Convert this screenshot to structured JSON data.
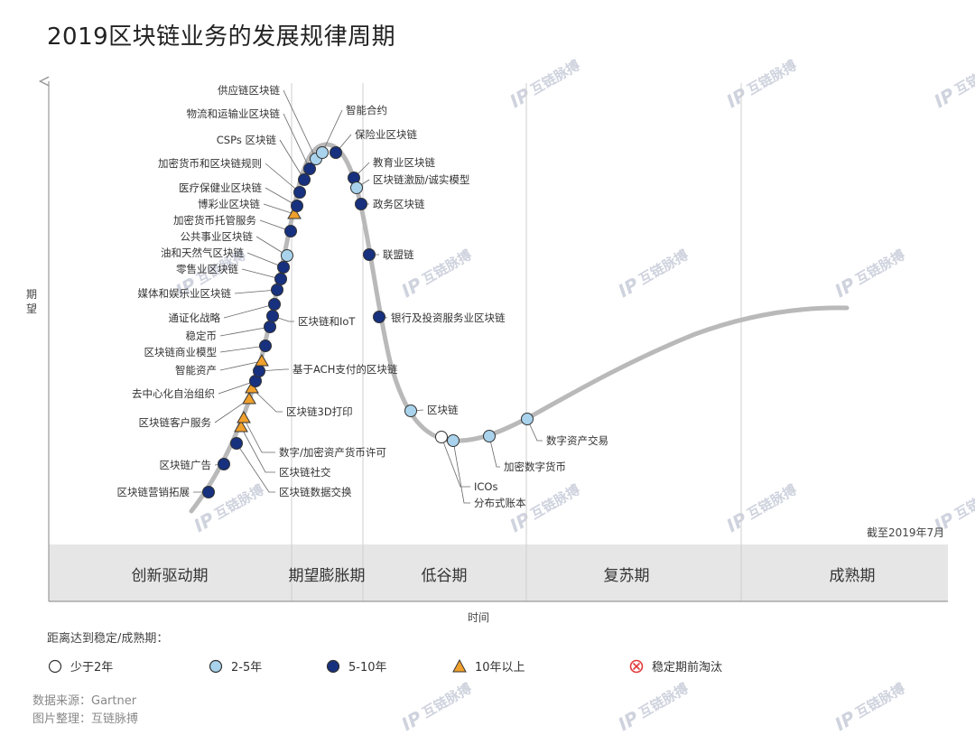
{
  "title": "2019区块链业务的发展规律周期",
  "chart_data": {
    "type": "hype-cycle",
    "xlabel": "时间",
    "ylabel": "期望",
    "as_of": "截至2019年7月",
    "phases": [
      "创新驱动期",
      "期望膨胀期",
      "低谷期",
      "复苏期",
      "成熟期"
    ],
    "legend_title": "距离达到稳定/成熟期：",
    "legend": [
      {
        "key": "lt2",
        "label": "少于2年",
        "color": "#ffffff"
      },
      {
        "key": "2to5",
        "label": "2-5年",
        "color": "#a9d3ec"
      },
      {
        "key": "5to10",
        "label": "5-10年",
        "color": "#17317f"
      },
      {
        "key": "gt10",
        "label": "10年以上",
        "color": "#f0a02c"
      },
      {
        "key": "obsolete",
        "label": "稳定期前淘汰",
        "color": "#e23a3a"
      }
    ],
    "points": [
      {
        "label": "区块链营销拓展",
        "class": "5to10"
      },
      {
        "label": "区块链广告",
        "class": "5to10"
      },
      {
        "label": "区块链数据交换",
        "class": "5to10"
      },
      {
        "label": "区块链社交",
        "class": "gt10"
      },
      {
        "label": "数字/加密资产货币许可",
        "class": "gt10"
      },
      {
        "label": "区块链客户服务",
        "class": "gt10"
      },
      {
        "label": "区块链3D打印",
        "class": "gt10"
      },
      {
        "label": "去中心化自治组织",
        "class": "5to10"
      },
      {
        "label": "基于ACH支付的区块链",
        "class": "5to10"
      },
      {
        "label": "智能资产",
        "class": "gt10"
      },
      {
        "label": "区块链商业模型",
        "class": "5to10"
      },
      {
        "label": "稳定币",
        "class": "5to10"
      },
      {
        "label": "区块链和IoT",
        "class": "5to10"
      },
      {
        "label": "通证化战略",
        "class": "5to10"
      },
      {
        "label": "媒体和娱乐业区块链",
        "class": "5to10"
      },
      {
        "label": "零售业区块链",
        "class": "5to10"
      },
      {
        "label": "油和天然气区块链",
        "class": "5to10"
      },
      {
        "label": "公共事业区块链",
        "class": "2to5"
      },
      {
        "label": "加密货币托管服务",
        "class": "5to10"
      },
      {
        "label": "博彩业区块链",
        "class": "gt10"
      },
      {
        "label": "医疗保健业区块链",
        "class": "5to10"
      },
      {
        "label": "加密货币和区块链规则",
        "class": "5to10"
      },
      {
        "label": "CSPs 区块链",
        "class": "5to10"
      },
      {
        "label": "物流和运输业区块链",
        "class": "5to10"
      },
      {
        "label": "供应链区块链",
        "class": "2to5"
      },
      {
        "label": "智能合约",
        "class": "2to5"
      },
      {
        "label": "保险业区块链",
        "class": "5to10"
      },
      {
        "label": "教育业区块链",
        "class": "5to10"
      },
      {
        "label": "区块链激励/诚实模型",
        "class": "2to5"
      },
      {
        "label": "政务区块链",
        "class": "5to10"
      },
      {
        "label": "联盟链",
        "class": "5to10"
      },
      {
        "label": "银行及投资服务业区块链",
        "class": "5to10"
      },
      {
        "label": "区块链",
        "class": "2to5"
      },
      {
        "label": "ICOs",
        "class": "lt2"
      },
      {
        "label": "分布式账本",
        "class": "2to5"
      },
      {
        "label": "加密数字货币",
        "class": "2to5"
      },
      {
        "label": "数字资产交易",
        "class": "2to5"
      }
    ]
  },
  "source": {
    "line1": "数据来源：Gartner",
    "line2": "图片整理：互链脉搏"
  },
  "watermark": {
    "text": "互链脉搏",
    "logo": "IP"
  }
}
